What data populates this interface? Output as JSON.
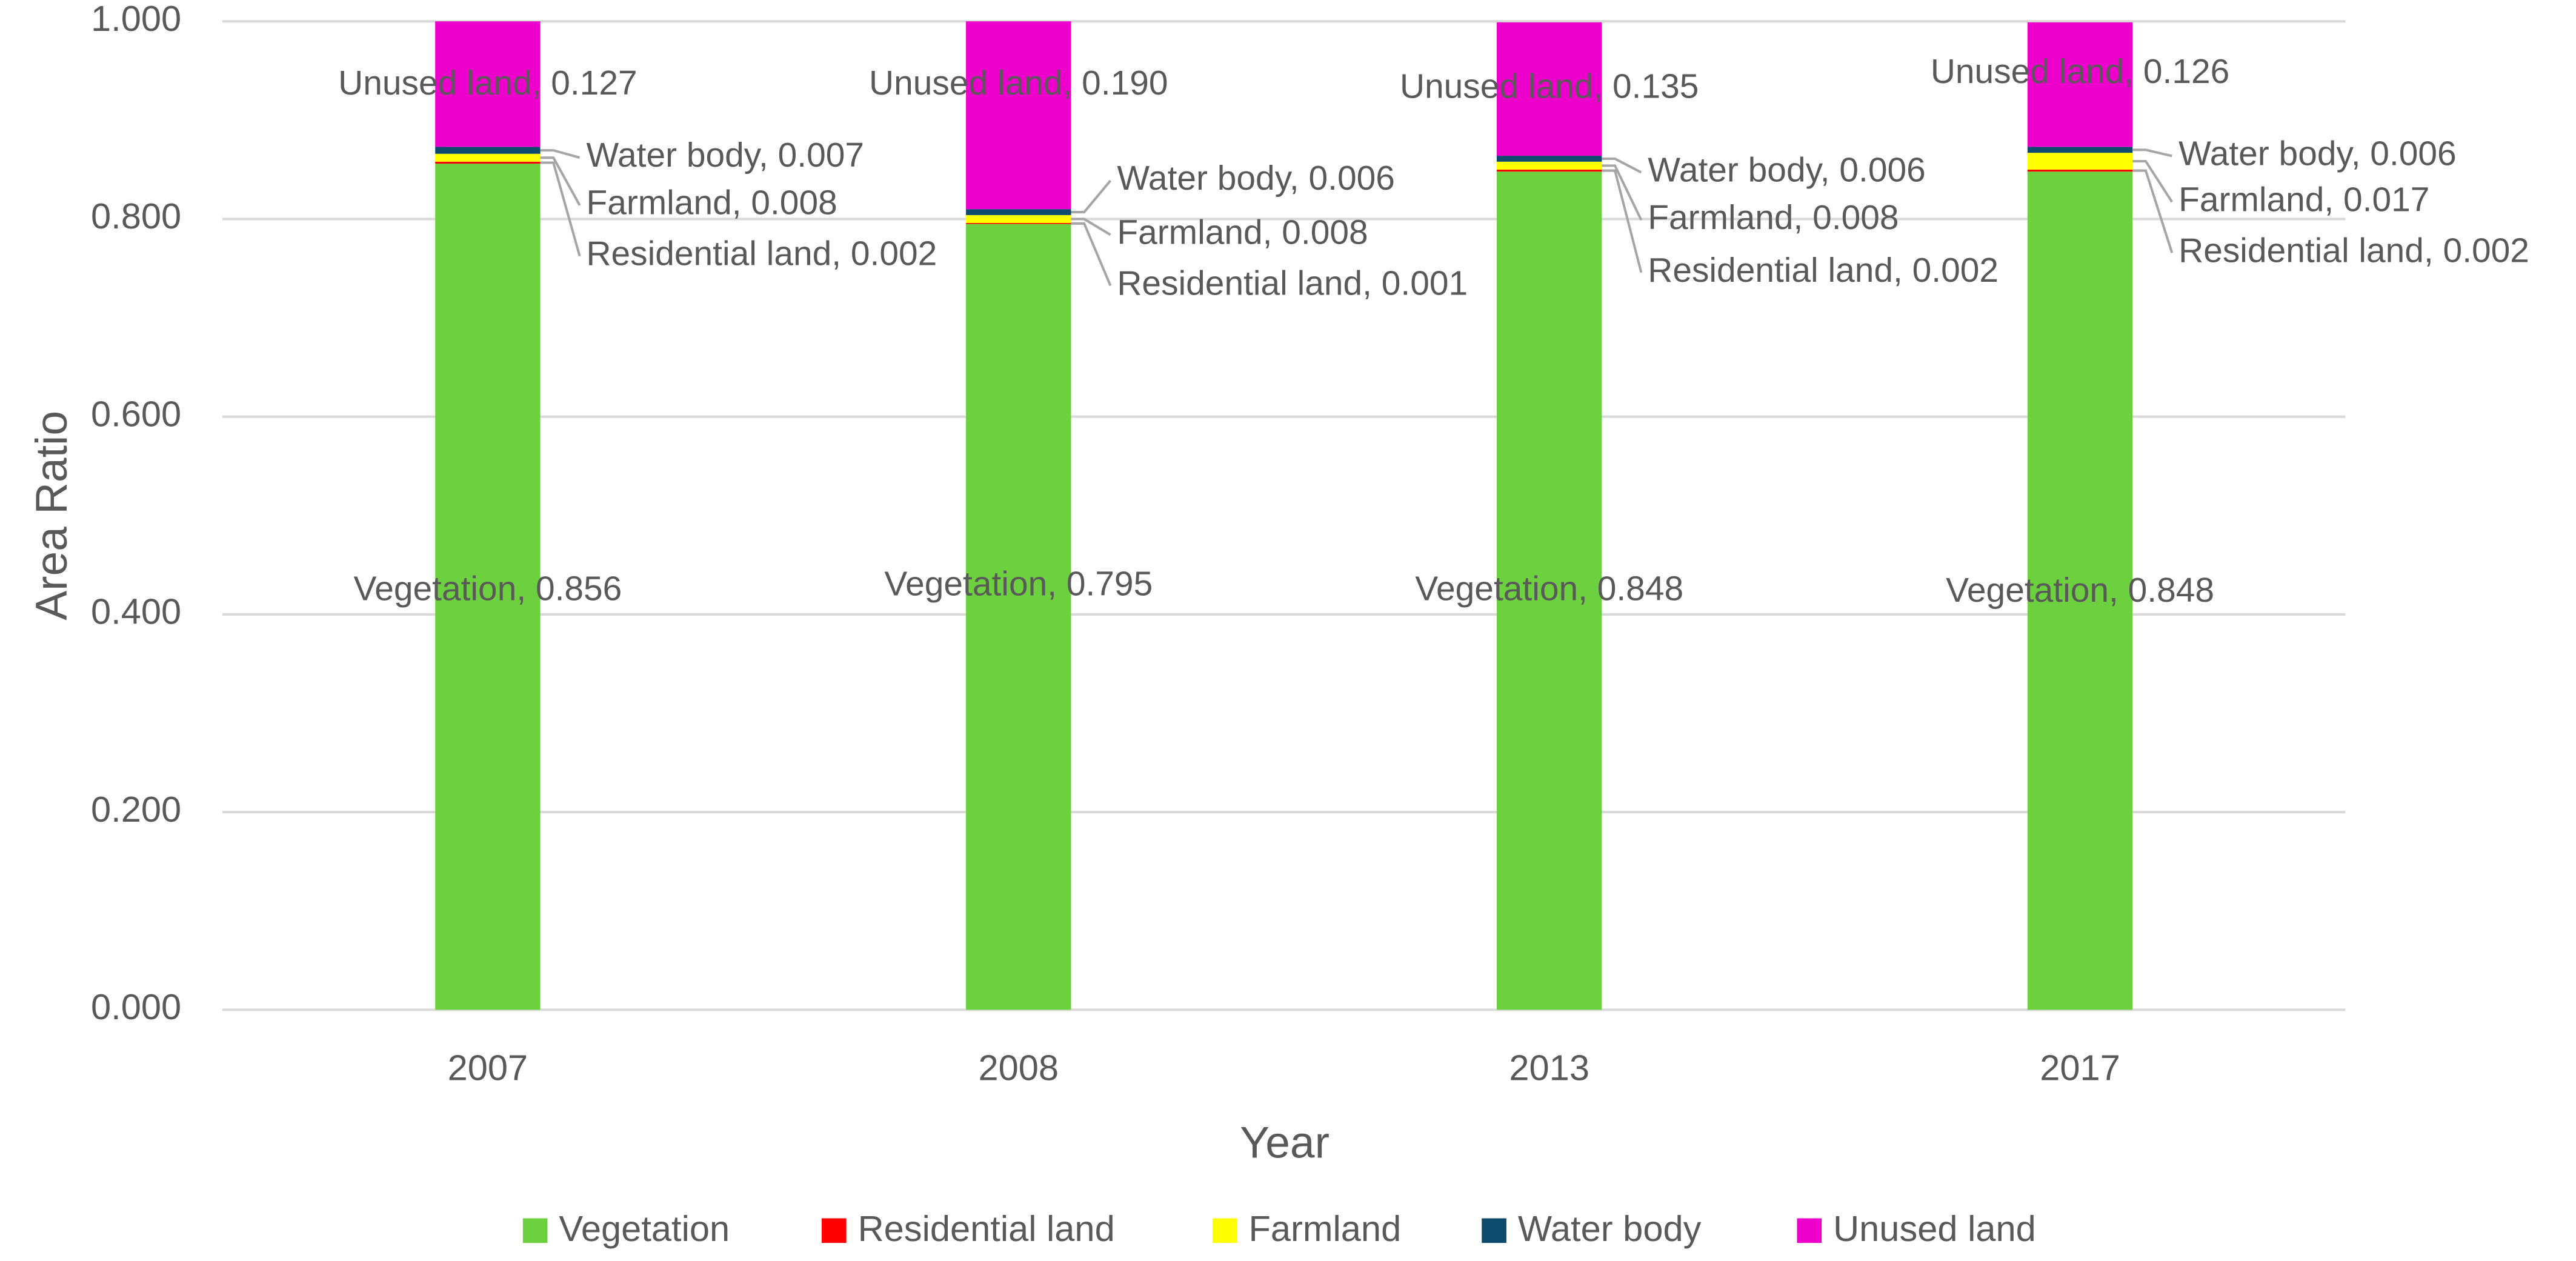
{
  "chart_data": {
    "type": "stacked_bar",
    "x_label": "Year",
    "y_label": "Area Ratio",
    "categories": [
      "2007",
      "2008",
      "2013",
      "2017"
    ],
    "series": [
      {
        "name": "Vegetation",
        "color": "#6dd13f",
        "values": [
          0.856,
          0.795,
          0.848,
          0.848
        ],
        "value_labels": [
          "Vegetation, 0.856",
          "Vegetation, 0.795",
          "Vegetation, 0.848",
          "Vegetation, 0.848"
        ]
      },
      {
        "name": "Residential land",
        "color": "#ff0000",
        "values": [
          0.002,
          0.001,
          0.002,
          0.002
        ],
        "value_labels": [
          "Residential land, 0.002",
          "Residential land, 0.001",
          "Residential land, 0.002",
          "Residential land, 0.002"
        ]
      },
      {
        "name": "Farmland",
        "color": "#ffff00",
        "values": [
          0.008,
          0.008,
          0.008,
          0.017
        ],
        "value_labels": [
          "Farmland, 0.008",
          "Farmland, 0.008",
          "Farmland, 0.008",
          "Farmland, 0.017"
        ]
      },
      {
        "name": "Water body",
        "color": "#0e4a6e",
        "values": [
          0.007,
          0.006,
          0.006,
          0.006
        ],
        "value_labels": [
          "Water body, 0.007",
          "Water body, 0.006",
          "Water body, 0.006",
          "Water body, 0.006"
        ]
      },
      {
        "name": "Unused land",
        "color": "#ee00cc",
        "values": [
          0.127,
          0.19,
          0.135,
          0.126
        ],
        "value_labels": [
          "Unused land, 0.127",
          "Unused land, 0.190",
          "Unused land, 0.135",
          "Unused land, 0.126"
        ]
      }
    ],
    "ylim": [
      0,
      1
    ],
    "yticks": [
      {
        "value": 0,
        "label": "0.000"
      },
      {
        "value": 0.2,
        "label": "0.200"
      },
      {
        "value": 0.4,
        "label": "0.400"
      },
      {
        "value": 0.6,
        "label": "0.600"
      },
      {
        "value": 0.8,
        "label": "0.800"
      },
      {
        "value": 1,
        "label": "1.000"
      }
    ],
    "grid": true,
    "legend": "bottom"
  }
}
